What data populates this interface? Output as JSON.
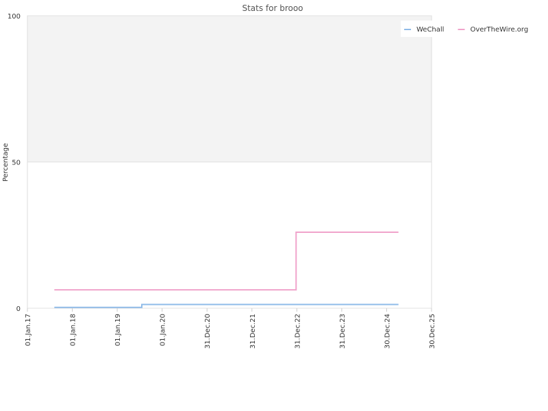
{
  "chart_data": {
    "type": "line",
    "step": true,
    "title": "Stats for brooo",
    "ylabel": "Percentage",
    "ylim": [
      0,
      100
    ],
    "yticks": [
      0,
      50,
      100
    ],
    "xlim": [
      "2017-01-01",
      "2025-12-30"
    ],
    "xticks": [
      {
        "value": "2017-01-01",
        "label": "01.Jan.17"
      },
      {
        "value": "2018-01-01",
        "label": "01.Jan.18"
      },
      {
        "value": "2019-01-01",
        "label": "01.Jan.19"
      },
      {
        "value": "2020-01-01",
        "label": "01.Jan.20"
      },
      {
        "value": "2020-12-31",
        "label": "31.Dec.20"
      },
      {
        "value": "2021-12-31",
        "label": "31.Dec.21"
      },
      {
        "value": "2022-12-31",
        "label": "31.Dec.22"
      },
      {
        "value": "2023-12-31",
        "label": "31.Dec.23"
      },
      {
        "value": "2024-12-30",
        "label": "30.Dec.24"
      },
      {
        "value": "2025-12-30",
        "label": "30.Dec.25"
      }
    ],
    "grid": true,
    "legend": "top-right",
    "series": [
      {
        "name": "WeChall",
        "color": "#8fbbe8",
        "x": [
          "2017-08-08",
          "2019-07-20",
          "2025-04-05"
        ],
        "values": [
          0.3,
          1.3,
          1.3
        ]
      },
      {
        "name": "OverTheWire.org",
        "color": "#f0a3cb",
        "x": [
          "2017-08-08",
          "2022-12-25",
          "2025-04-05"
        ],
        "values": [
          6.3,
          26,
          26
        ]
      }
    ]
  }
}
